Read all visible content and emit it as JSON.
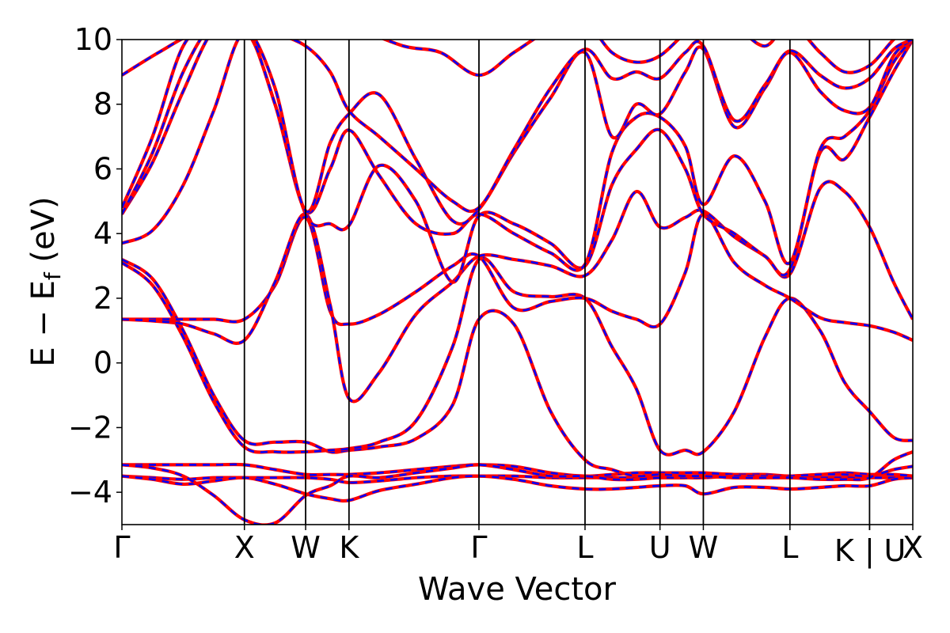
{
  "chart_data": {
    "type": "line",
    "title": "",
    "xlabel": "Wave Vector",
    "ylabel": "E − E_f (eV)",
    "ylabel_main": "E − E",
    "ylabel_sub": "f",
    "ylabel_unit": " (eV)",
    "ylim": [
      -5,
      10
    ],
    "yticks": [
      10,
      8,
      6,
      4,
      2,
      0,
      -2,
      -4
    ],
    "ytick_labels": [
      "10",
      "8",
      "6",
      "4",
      "2",
      "0",
      "−2",
      "−4"
    ],
    "kpoints": [
      {
        "label": "Γ",
        "x": 0.0
      },
      {
        "label": "X",
        "x": 1.0
      },
      {
        "label": "W",
        "x": 1.5
      },
      {
        "label": "K",
        "x": 1.854
      },
      {
        "label": "Γ",
        "x": 2.915
      },
      {
        "label": "L",
        "x": 3.781
      },
      {
        "label": "U",
        "x": 4.393
      },
      {
        "label": "W",
        "x": 4.747
      },
      {
        "label": "L",
        "x": 5.454
      },
      {
        "label": "K",
        "x": 6.104
      },
      {
        "label": "|",
        "x": 6.104
      },
      {
        "label": "U",
        "x": 6.104
      },
      {
        "label": "X",
        "x": 6.457
      }
    ],
    "series_styles": [
      {
        "name": "band structure (solid)",
        "color": "#ff0000",
        "dash": "solid"
      },
      {
        "name": "band structure (dashed)",
        "color": "#0000ff",
        "dash": "dashed"
      }
    ],
    "bands": [
      {
        "x": [
          0,
          0.25,
          0.5,
          0.75,
          1.0,
          1.25,
          1.5,
          1.7,
          1.854,
          2.1,
          2.4,
          2.7,
          2.915,
          3.2,
          3.5,
          3.781,
          4.0,
          4.2,
          4.393,
          4.6,
          4.747,
          5.0,
          5.25,
          5.454,
          5.7,
          5.9,
          6.104,
          6.3,
          6.457
        ],
        "y": [
          -3.5,
          -3.55,
          -3.6,
          -3.55,
          -3.55,
          -3.55,
          -3.55,
          -3.6,
          -3.7,
          -3.65,
          -3.55,
          -3.5,
          -3.5,
          -3.5,
          -3.55,
          -3.55,
          -3.55,
          -3.55,
          -3.55,
          -3.55,
          -3.5,
          -3.55,
          -3.55,
          -3.55,
          -3.55,
          -3.55,
          -3.55,
          -3.55,
          -3.55
        ]
      },
      {
        "x": [
          0,
          0.25,
          0.5,
          0.75,
          1.0,
          1.25,
          1.5,
          1.7,
          1.854,
          2.1,
          2.4,
          2.7,
          2.915,
          3.2,
          3.5,
          3.781,
          4.0,
          4.2,
          4.393,
          4.6,
          4.747,
          5.0,
          5.25,
          5.454,
          5.7,
          5.9,
          6.104,
          6.3,
          6.457
        ],
        "y": [
          -3.5,
          -3.6,
          -3.75,
          -3.65,
          -3.55,
          -3.75,
          -4.05,
          -4.2,
          -4.25,
          -3.95,
          -3.75,
          -3.55,
          -3.5,
          -3.6,
          -3.8,
          -3.9,
          -3.9,
          -3.85,
          -3.8,
          -3.8,
          -4.05,
          -3.85,
          -3.85,
          -3.9,
          -3.85,
          -3.8,
          -3.8,
          -3.6,
          -3.55
        ]
      },
      {
        "x": [
          0,
          0.25,
          0.5,
          0.75,
          1.0,
          1.25,
          1.5,
          1.7,
          1.854,
          2.1,
          2.4,
          2.7,
          2.915,
          3.2,
          3.5,
          3.781,
          4.0,
          4.2,
          4.393,
          4.6,
          4.747,
          5.0,
          5.25,
          5.454,
          5.7,
          5.9,
          6.104,
          6.3,
          6.457
        ],
        "y": [
          -3.15,
          -3.15,
          -3.15,
          -3.15,
          -3.15,
          -3.3,
          -3.45,
          -3.45,
          -3.45,
          -3.4,
          -3.3,
          -3.2,
          -3.15,
          -3.2,
          -3.4,
          -3.5,
          -3.45,
          -3.4,
          -3.4,
          -3.4,
          -3.4,
          -3.45,
          -3.45,
          -3.5,
          -3.45,
          -3.4,
          -3.45,
          -3.45,
          -3.5
        ]
      },
      {
        "x": [
          0,
          0.25,
          0.5,
          0.75,
          1.0,
          1.25,
          1.5,
          1.7,
          1.854,
          2.1,
          2.4,
          2.7,
          2.915,
          3.2,
          3.5,
          3.781,
          4.0,
          4.2,
          4.393,
          4.6,
          4.747,
          5.0,
          5.25,
          5.454,
          5.7,
          5.9,
          6.104,
          6.3,
          6.457
        ],
        "y": [
          -3.15,
          -3.25,
          -3.5,
          -4.1,
          -4.85,
          -4.95,
          -4.1,
          -3.8,
          -3.5,
          -3.55,
          -3.4,
          -3.25,
          -3.15,
          -3.3,
          -3.5,
          -3.5,
          -3.6,
          -3.6,
          -3.55,
          -3.55,
          -3.55,
          -3.5,
          -3.5,
          -3.5,
          -3.45,
          -3.45,
          -3.5,
          -3.3,
          -3.2
        ]
      },
      {
        "x": [
          0,
          0.25,
          0.5,
          0.75,
          1.0,
          1.25,
          1.5,
          1.7,
          1.854,
          2.1,
          2.4,
          2.7,
          2.915,
          3.2,
          3.5,
          3.781,
          4.0,
          4.2,
          4.393,
          4.6,
          4.747,
          5.0,
          5.25,
          5.454,
          5.7,
          5.9,
          6.104,
          6.3,
          6.457
        ],
        "y": [
          3.2,
          2.6,
          1.0,
          -1.0,
          -2.4,
          -2.45,
          -2.45,
          -2.75,
          -2.7,
          -2.6,
          -2.35,
          -1.3,
          1.35,
          1.2,
          -1.5,
          -3.0,
          -3.3,
          -3.5,
          -3.45,
          -3.5,
          -3.5,
          -3.55,
          -3.55,
          -3.55,
          -3.6,
          -3.6,
          -3.55,
          -3.0,
          -2.75
        ]
      },
      {
        "x": [
          0,
          0.25,
          0.5,
          0.75,
          1.0,
          1.25,
          1.5,
          1.7,
          1.854,
          2.1,
          2.4,
          2.7,
          2.915,
          3.2,
          3.5,
          3.781,
          4.0,
          4.2,
          4.393,
          4.6,
          4.747,
          5.0,
          5.25,
          5.454,
          5.7,
          5.9,
          6.104,
          6.3,
          6.457
        ],
        "y": [
          3.1,
          2.4,
          0.8,
          -1.2,
          -2.6,
          -2.75,
          -2.75,
          -2.7,
          -2.65,
          -2.45,
          -1.8,
          0.5,
          3.2,
          2.2,
          2.05,
          2.0,
          0.5,
          -0.8,
          -2.7,
          -2.7,
          -2.75,
          -1.5,
          0.8,
          2.0,
          1.0,
          -0.6,
          -1.5,
          -2.3,
          -2.4
        ]
      },
      {
        "x": [
          0,
          0.25,
          0.5,
          0.75,
          1.0,
          1.25,
          1.5,
          1.7,
          1.854,
          2.1,
          2.4,
          2.7,
          2.915,
          3.2,
          3.5,
          3.781,
          4.0,
          4.2,
          4.393,
          4.6,
          4.747,
          5.0,
          5.25,
          5.454,
          5.7,
          5.9,
          6.104,
          6.3,
          6.457
        ],
        "y": [
          1.35,
          1.35,
          1.35,
          1.35,
          1.35,
          2.4,
          4.5,
          1.6,
          1.2,
          1.5,
          2.2,
          3.0,
          3.3,
          1.7,
          1.9,
          2.0,
          1.6,
          1.35,
          1.2,
          2.8,
          4.6,
          3.1,
          2.4,
          2.0,
          1.4,
          1.25,
          1.15,
          0.95,
          0.7
        ]
      },
      {
        "x": [
          0,
          0.25,
          0.5,
          0.75,
          1.0,
          1.25,
          1.5,
          1.7,
          1.854,
          2.1,
          2.4,
          2.7,
          2.915,
          3.2,
          3.5,
          3.781,
          4.0,
          4.2,
          4.393,
          4.6,
          4.747,
          5.0,
          5.25,
          5.454,
          5.7,
          5.9,
          6.104,
          6.3,
          6.457
        ],
        "y": [
          1.35,
          1.3,
          1.2,
          0.9,
          0.7,
          2.5,
          4.6,
          1.8,
          -1.1,
          -0.3,
          1.5,
          2.5,
          3.3,
          3.2,
          3.0,
          2.7,
          3.8,
          5.3,
          4.2,
          4.5,
          4.7,
          3.9,
          3.3,
          2.75,
          5.4,
          5.3,
          4.2,
          2.5,
          1.35
        ]
      },
      {
        "x": [
          0,
          0.25,
          0.5,
          0.75,
          1.0,
          1.25,
          1.5,
          1.7,
          1.854,
          2.1,
          2.4,
          2.7,
          2.915,
          3.2,
          3.5,
          3.781,
          4.0,
          4.2,
          4.393,
          4.6,
          4.747,
          5.0,
          5.25,
          5.454,
          5.7,
          5.9,
          6.104,
          6.3,
          6.457
        ],
        "y": [
          3.7,
          4.1,
          5.5,
          7.8,
          10.2,
          8.0,
          4.6,
          4.3,
          4.25,
          6.1,
          5.0,
          2.5,
          4.55,
          4.3,
          3.7,
          3.0,
          5.5,
          6.6,
          7.2,
          6.0,
          4.6,
          4.0,
          3.3,
          2.9,
          6.5,
          6.3,
          7.6,
          9.0,
          10.0
        ]
      },
      {
        "x": [
          0,
          0.25,
          0.5,
          0.75,
          1.0,
          1.25,
          1.5,
          1.7,
          1.854,
          2.1,
          2.4,
          2.7,
          2.915,
          3.2,
          3.5,
          3.781,
          4.0,
          4.2,
          4.393,
          4.6,
          4.747,
          5.0,
          5.25,
          5.454,
          5.7,
          5.9,
          6.104,
          6.3,
          6.457
        ],
        "y": [
          4.6,
          6.2,
          8.4,
          10.3,
          10.5,
          8.0,
          4.7,
          6.0,
          7.2,
          5.8,
          4.3,
          4.0,
          4.6,
          4.0,
          3.4,
          3.05,
          6.5,
          7.6,
          7.6,
          6.7,
          4.9,
          6.4,
          5.0,
          3.1,
          6.6,
          7.0,
          7.8,
          9.3,
          10.0
        ]
      },
      {
        "x": [
          0,
          0.25,
          0.5,
          0.75,
          1.0,
          1.25,
          1.5,
          1.7,
          1.854,
          2.1,
          2.4,
          2.7,
          2.915,
          3.2,
          3.5,
          3.781,
          4.0,
          4.2,
          4.393,
          4.6,
          4.747,
          5.0,
          5.25,
          5.454,
          5.7,
          5.9,
          6.104,
          6.3,
          6.457
        ],
        "y": [
          4.6,
          6.5,
          9.0,
          10.5,
          10.5,
          8.5,
          4.7,
          6.8,
          7.7,
          8.3,
          6.3,
          4.4,
          4.75,
          6.5,
          8.2,
          9.6,
          7.0,
          8.0,
          7.7,
          9.0,
          9.7,
          7.3,
          8.5,
          9.6,
          8.4,
          7.8,
          7.9,
          9.5,
          10.0
        ]
      },
      {
        "x": [
          0,
          0.25,
          0.5,
          0.75,
          1.0,
          1.25,
          1.5,
          1.7,
          1.854,
          2.1,
          2.4,
          2.7,
          2.915,
          3.2,
          3.5,
          3.781,
          4.0,
          4.2,
          4.393,
          4.6,
          4.747,
          5.0,
          5.25,
          5.454,
          5.7,
          5.9,
          6.104,
          6.3,
          6.457
        ],
        "y": [
          4.8,
          7.0,
          9.8,
          10.5,
          10.5,
          10.2,
          9.8,
          9.0,
          7.8,
          7.0,
          6.0,
          5.0,
          4.8,
          6.6,
          8.5,
          9.7,
          8.8,
          9.0,
          8.8,
          9.6,
          9.8,
          7.5,
          8.6,
          9.65,
          8.9,
          8.5,
          8.8,
          9.7,
          10.0
        ]
      },
      {
        "x": [
          0,
          0.3,
          0.6,
          1.0,
          1.5,
          1.854,
          2.3,
          2.6,
          2.915,
          3.2,
          3.5,
          3.781,
          4.0,
          4.2,
          4.393,
          4.6,
          4.747,
          5.0,
          5.25,
          5.454,
          5.7,
          5.9,
          6.104,
          6.3,
          6.457
        ],
        "y": [
          8.9,
          9.6,
          10.2,
          10.5,
          10.5,
          10.4,
          9.8,
          9.6,
          8.9,
          9.6,
          10.3,
          10.5,
          9.6,
          9.3,
          9.5,
          10.2,
          10.5,
          10.4,
          9.8,
          10.5,
          9.6,
          9.0,
          9.2,
          10.0,
          10.5
        ]
      }
    ]
  }
}
